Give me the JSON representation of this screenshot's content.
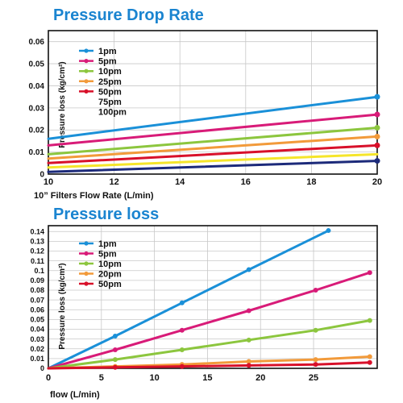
{
  "chart_data": [
    {
      "type": "line",
      "title": "Pressure Drop Rate",
      "xlabel": "10” Filters Flow Rate (L/min)",
      "ylabel": "Pressure loss (kg/cm²)",
      "x": [
        10,
        20
      ],
      "xticks": [
        10,
        12,
        14,
        16,
        18,
        20
      ],
      "xlim": [
        10,
        20
      ],
      "ylim": [
        0,
        0.065
      ],
      "yticks": [
        0,
        0.01,
        0.02,
        0.03,
        0.04,
        0.05,
        0.06
      ],
      "ytick_labels": [
        "0",
        "0.01",
        "0.02",
        "0.03",
        "0.04",
        "0.05",
        "0.06"
      ],
      "grid": true,
      "legend_position": "top-left",
      "series": [
        {
          "name": "1pm",
          "color": "#1a90d8",
          "values": [
            0.016,
            0.035
          ],
          "legend_marker": true,
          "end_marker": true
        },
        {
          "name": "5pm",
          "color": "#d81b78",
          "values": [
            0.013,
            0.027
          ],
          "legend_marker": true,
          "end_marker": true
        },
        {
          "name": "10pm",
          "color": "#8cc63e",
          "values": [
            0.009,
            0.021
          ],
          "legend_marker": true,
          "end_marker": true
        },
        {
          "name": "25pm",
          "color": "#f29a3a",
          "values": [
            0.007,
            0.017
          ],
          "legend_marker": true,
          "end_marker": true
        },
        {
          "name": "50pm",
          "color": "#d8102a",
          "values": [
            0.005,
            0.013
          ],
          "legend_marker": true,
          "end_marker": true
        },
        {
          "name": "75pm",
          "color": "#f5e52a",
          "values": [
            0.003,
            0.009
          ],
          "legend_marker": false,
          "end_marker": false
        },
        {
          "name": "100pm",
          "color": "#1c2a7a",
          "values": [
            0.001,
            0.006
          ],
          "legend_marker": false,
          "end_marker": true
        }
      ]
    },
    {
      "type": "line",
      "title": "Pressure loss",
      "xlabel": "flow (L/min)",
      "ylabel": "Pressure loss (kg/cm²)",
      "xlim": [
        0,
        31
      ],
      "xticks": [
        0,
        5,
        10,
        15,
        20,
        25
      ],
      "ylim": [
        0,
        0.146
      ],
      "yticks": [
        0,
        0.01,
        0.02,
        0.03,
        0.04,
        0.05,
        0.06,
        0.07,
        0.08,
        0.09,
        0.1,
        0.11,
        0.12,
        0.13,
        0.14
      ],
      "ytick_labels": [
        "0",
        "0.01",
        "0.02",
        "0.03",
        "0.04",
        "0.05",
        "0.06",
        "0.07",
        "0.08",
        "0.09",
        "0.1",
        "0.11",
        "0.12",
        "0.13",
        "0.14"
      ],
      "grid": true,
      "legend_position": "top-left",
      "series": [
        {
          "name": "1pm",
          "color": "#1a90d8",
          "x": [
            0,
            6.3,
            12.6,
            18.9,
            26.4
          ],
          "values": [
            0,
            0.033,
            0.067,
            0.101,
            0.141
          ]
        },
        {
          "name": "5pm",
          "color": "#d81b78",
          "x": [
            0,
            6.3,
            12.6,
            18.9,
            25.2,
            30.3
          ],
          "values": [
            0,
            0.019,
            0.039,
            0.059,
            0.08,
            0.098
          ]
        },
        {
          "name": "10pm",
          "color": "#8cc63e",
          "x": [
            0,
            6.3,
            12.6,
            18.9,
            25.2,
            30.3
          ],
          "values": [
            0,
            0.009,
            0.019,
            0.029,
            0.039,
            0.049
          ]
        },
        {
          "name": "20pm",
          "color": "#f29a3a",
          "x": [
            0,
            6.3,
            12.6,
            18.9,
            25.2,
            30.3
          ],
          "values": [
            0,
            0.002,
            0.004,
            0.007,
            0.009,
            0.012
          ]
        },
        {
          "name": "50pm",
          "color": "#d8102a",
          "x": [
            0,
            6.3,
            12.6,
            18.9,
            25.2,
            30.3
          ],
          "values": [
            0,
            0.001,
            0.002,
            0.003,
            0.004,
            0.006
          ]
        }
      ]
    }
  ]
}
